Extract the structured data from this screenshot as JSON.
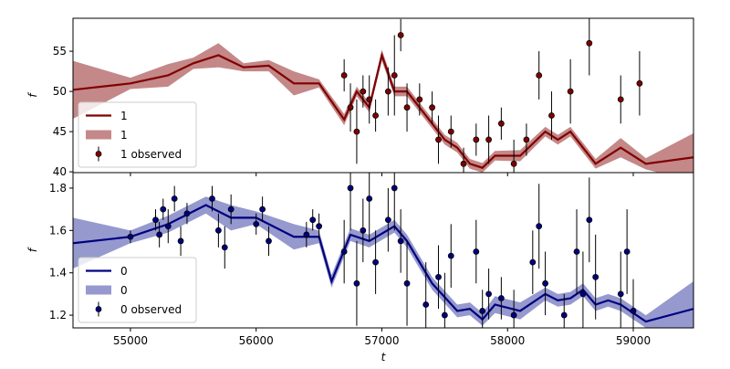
{
  "chart_data": [
    {
      "type": "line",
      "ylabel": "f",
      "xlim": [
        54543,
        59479
      ],
      "ylim": [
        39.9,
        59.1
      ],
      "xticks": [
        55000,
        56000,
        57000,
        58000,
        59000
      ],
      "xticklabels": false,
      "yticks": [
        40,
        45,
        50,
        55
      ],
      "legend": "lower left",
      "x": [
        54543,
        55000,
        55300,
        55500,
        55700,
        55900,
        56100,
        56300,
        56500,
        56700,
        56800,
        56900,
        57000,
        57100,
        57200,
        57300,
        57500,
        57600,
        57700,
        57800,
        57900,
        58100,
        58300,
        58400,
        58500,
        58600,
        58700,
        58900,
        59100,
        59479
      ],
      "series": [
        {
          "name": "1",
          "kind": "line",
          "color": "#800000",
          "values": [
            50.2,
            51.0,
            52.0,
            53.5,
            54.5,
            53.0,
            53.2,
            51.0,
            51.0,
            46.5,
            50.0,
            48.0,
            54.5,
            50.0,
            50.0,
            48.0,
            44.0,
            43.0,
            41.0,
            40.5,
            42.0,
            42.0,
            45.0,
            44.0,
            45.0,
            43.0,
            41.0,
            43.0,
            41.0,
            41.8
          ]
        },
        {
          "name": "1",
          "kind": "band",
          "color": "#b56a6a",
          "lower": [
            46.6,
            50.3,
            50.6,
            52.8,
            53.0,
            52.5,
            52.5,
            49.5,
            50.5,
            45.8,
            49.4,
            47.4,
            53.8,
            49.4,
            49.4,
            47.4,
            43.4,
            42.4,
            40.4,
            39.9,
            41.4,
            41.3,
            44.4,
            43.4,
            44.4,
            42.4,
            40.4,
            41.8,
            40.3,
            38.8
          ],
          "upper": [
            53.8,
            51.7,
            53.4,
            54.2,
            56.0,
            53.5,
            53.9,
            52.5,
            51.5,
            47.2,
            50.6,
            48.6,
            55.2,
            50.6,
            50.6,
            48.6,
            44.6,
            43.6,
            41.6,
            41.1,
            42.6,
            42.7,
            45.6,
            44.6,
            45.6,
            43.6,
            41.6,
            44.2,
            41.7,
            44.8
          ]
        },
        {
          "name": "1 observed",
          "kind": "errorbar",
          "color": "#800000",
          "x": [
            56700,
            56750,
            56800,
            56850,
            56900,
            56950,
            57050,
            57100,
            57150,
            57200,
            57300,
            57400,
            57450,
            57550,
            57650,
            57750,
            57850,
            57950,
            58050,
            58150,
            58250,
            58350,
            58500,
            58650,
            58900,
            59050
          ],
          "values": [
            52,
            48,
            45,
            50,
            49,
            47,
            50,
            52,
            57,
            48,
            49,
            48,
            44,
            45,
            41,
            44,
            44,
            46,
            41,
            44,
            52,
            47,
            50,
            56,
            49,
            51
          ],
          "errors": [
            2,
            3,
            4,
            2,
            3,
            2,
            3,
            5,
            2,
            3,
            2,
            2,
            3,
            2,
            2,
            2,
            3,
            2,
            3,
            2,
            3,
            3,
            4,
            4,
            3,
            4
          ]
        }
      ]
    },
    {
      "type": "line",
      "ylabel": "f",
      "xlabel": "t",
      "xlim": [
        54543,
        59479
      ],
      "ylim": [
        1.14,
        1.873
      ],
      "xticks": [
        55000,
        56000,
        57000,
        58000,
        59000
      ],
      "xticklabels": true,
      "yticks": [
        1.2,
        1.4,
        1.6,
        1.8
      ],
      "legend": "lower left",
      "x": [
        54543,
        55000,
        55300,
        55600,
        55800,
        56000,
        56300,
        56500,
        56600,
        56750,
        56900,
        57100,
        57200,
        57400,
        57600,
        57700,
        57800,
        57900,
        58100,
        58300,
        58400,
        58500,
        58600,
        58700,
        58800,
        58900,
        59100,
        59479
      ],
      "series": [
        {
          "name": "0",
          "kind": "line",
          "color": "#000080",
          "values": [
            1.54,
            1.57,
            1.63,
            1.72,
            1.66,
            1.66,
            1.57,
            1.57,
            1.36,
            1.58,
            1.55,
            1.62,
            1.55,
            1.35,
            1.22,
            1.23,
            1.18,
            1.25,
            1.22,
            1.3,
            1.27,
            1.28,
            1.32,
            1.25,
            1.27,
            1.25,
            1.17,
            1.23
          ]
        },
        {
          "name": "0",
          "kind": "band",
          "color": "#7b7fc0",
          "lower": [
            1.42,
            1.54,
            1.59,
            1.68,
            1.6,
            1.63,
            1.51,
            1.54,
            1.33,
            1.55,
            1.52,
            1.59,
            1.52,
            1.32,
            1.19,
            1.2,
            1.15,
            1.21,
            1.18,
            1.27,
            1.24,
            1.25,
            1.29,
            1.22,
            1.24,
            1.22,
            1.14,
            1.1
          ],
          "upper": [
            1.66,
            1.6,
            1.67,
            1.76,
            1.72,
            1.69,
            1.63,
            1.6,
            1.39,
            1.61,
            1.58,
            1.65,
            1.58,
            1.38,
            1.25,
            1.26,
            1.21,
            1.29,
            1.26,
            1.33,
            1.3,
            1.31,
            1.35,
            1.28,
            1.3,
            1.28,
            1.2,
            1.36
          ]
        },
        {
          "name": "0 observed",
          "kind": "errorbar",
          "color": "#000080",
          "x": [
            55000,
            55200,
            55230,
            55260,
            55300,
            55350,
            55400,
            55450,
            55650,
            55700,
            55750,
            55800,
            56000,
            56050,
            56100,
            56400,
            56450,
            56500,
            56700,
            56750,
            56800,
            56850,
            56900,
            56950,
            57050,
            57100,
            57150,
            57200,
            57350,
            57450,
            57500,
            57550,
            57750,
            57800,
            57850,
            57950,
            58050,
            58200,
            58250,
            58300,
            58450,
            58550,
            58600,
            58650,
            58700,
            58900,
            58950,
            59000
          ],
          "values": [
            1.57,
            1.65,
            1.58,
            1.7,
            1.62,
            1.75,
            1.55,
            1.68,
            1.75,
            1.6,
            1.52,
            1.7,
            1.63,
            1.7,
            1.55,
            1.58,
            1.65,
            1.62,
            1.5,
            1.8,
            1.35,
            1.6,
            1.75,
            1.45,
            1.65,
            1.8,
            1.55,
            1.35,
            1.25,
            1.38,
            1.2,
            1.48,
            1.5,
            1.22,
            1.3,
            1.28,
            1.2,
            1.45,
            1.62,
            1.35,
            1.2,
            1.5,
            1.3,
            1.65,
            1.38,
            1.3,
            1.5,
            1.22
          ],
          "errors": [
            0.03,
            0.05,
            0.06,
            0.05,
            0.08,
            0.06,
            0.07,
            0.05,
            0.06,
            0.08,
            0.1,
            0.07,
            0.05,
            0.06,
            0.07,
            0.06,
            0.05,
            0.06,
            0.15,
            0.2,
            0.2,
            0.15,
            0.2,
            0.15,
            0.15,
            0.2,
            0.15,
            0.2,
            0.2,
            0.15,
            0.2,
            0.15,
            0.15,
            0.1,
            0.12,
            0.1,
            0.12,
            0.15,
            0.2,
            0.15,
            0.1,
            0.2,
            0.2,
            0.2,
            0.2,
            0.2,
            0.2,
            0.15
          ]
        }
      ]
    }
  ]
}
